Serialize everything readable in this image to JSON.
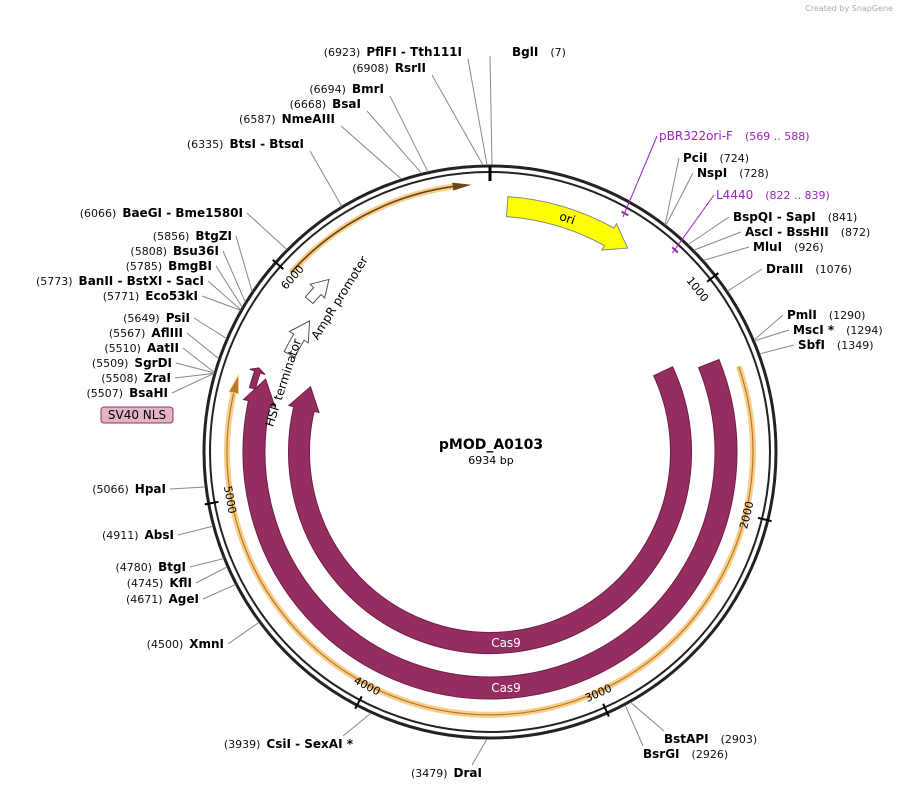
{
  "header": {
    "credit": "Created by SnapGene"
  },
  "map": {
    "name": "pMOD_A0103",
    "length": "6934 bp",
    "ticks": [
      1000,
      2000,
      3000,
      4000,
      5000,
      6000
    ]
  },
  "sites": [
    {
      "name": "PflFI  - Tth111I",
      "position": "(6923)"
    },
    {
      "name": "RsrII",
      "position": "(6908)"
    },
    {
      "name": "BmrI",
      "position": "(6694)"
    },
    {
      "name": "BsaI",
      "position": "(6668)"
    },
    {
      "name": "NmeAIII",
      "position": "(6587)"
    },
    {
      "name": "BtsI  - BtsαI",
      "position": "(6335)"
    },
    {
      "name": "BaeGI  - Bme1580I",
      "position": "(6066)"
    },
    {
      "name": "BtgZI",
      "position": "(5856)"
    },
    {
      "name": "Bsu36I",
      "position": "(5808)"
    },
    {
      "name": "BmgBI",
      "position": "(5785)"
    },
    {
      "name": "BanII  - BstXI  - SacI",
      "position": "(5773)"
    },
    {
      "name": "Eco53kI",
      "position": "(5771)"
    },
    {
      "name": "PsiI",
      "position": "(5649)"
    },
    {
      "name": "AflIII",
      "position": "(5567)"
    },
    {
      "name": "AatII",
      "position": "(5510)"
    },
    {
      "name": "SgrDI",
      "position": "(5509)"
    },
    {
      "name": "ZraI",
      "position": "(5508)"
    },
    {
      "name": "BsaHI",
      "position": "(5507)"
    },
    {
      "name": "HpaI",
      "position": "(5066)"
    },
    {
      "name": "AbsI",
      "position": "(4911)"
    },
    {
      "name": "BtgI",
      "position": "(4780)"
    },
    {
      "name": "KflI",
      "position": "(4745)"
    },
    {
      "name": "AgeI",
      "position": "(4671)"
    },
    {
      "name": "XmnI",
      "position": "(4500)"
    },
    {
      "name": "CsiI  - SexAI *",
      "position": "(3939)"
    },
    {
      "name": "DraI",
      "position": "(3479)"
    },
    {
      "name": "BglI",
      "position": "(7)"
    },
    {
      "name": "PciI",
      "position": "(724)"
    },
    {
      "name": "NspI",
      "position": "(728)"
    },
    {
      "name": "BspQI  - SapI",
      "position": "(841)"
    },
    {
      "name": "AscI  - BssHII",
      "position": "(872)"
    },
    {
      "name": "MluI",
      "position": "(926)"
    },
    {
      "name": "DraIII",
      "position": "(1076)"
    },
    {
      "name": "PmlI",
      "position": "(1290)"
    },
    {
      "name": "MscI *",
      "position": "(1294)"
    },
    {
      "name": "SbfI",
      "position": "(1349)"
    },
    {
      "name": "BstAPI",
      "position": "(2903)"
    },
    {
      "name": "BsrGI",
      "position": "(2926)"
    }
  ],
  "primers": [
    {
      "name": "pBR322ori-F",
      "range": "(569 .. 588)"
    },
    {
      "name": "L4440",
      "range": "(822 .. 839)"
    }
  ],
  "features": [
    {
      "label": "ori"
    },
    {
      "label": "AmpR promoter"
    },
    {
      "label": "HSP terminator"
    },
    {
      "label": "SV40 NLS"
    },
    {
      "label": "Cas9"
    },
    {
      "label": "Cas9"
    }
  ]
}
